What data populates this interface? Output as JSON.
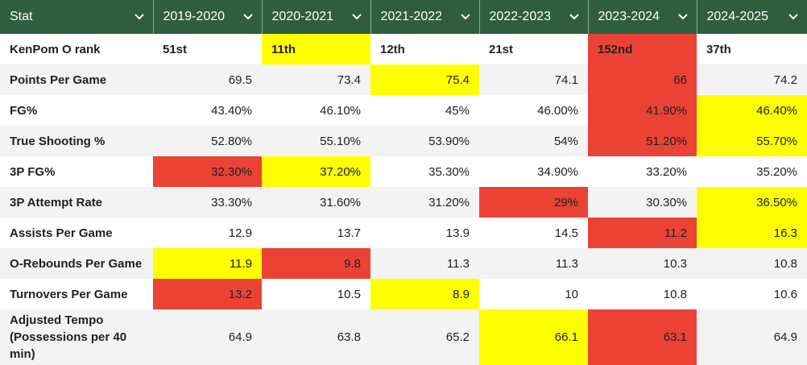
{
  "headers": [
    "Stat",
    "2019-2020",
    "2020-2021",
    "2021-2022",
    "2022-2023",
    "2023-2024",
    "2024-2025"
  ],
  "icons": {
    "header_dropdown": "chevron-down-icon"
  },
  "colors": {
    "header_bg": "#2e5e3e",
    "red": "#ea4335",
    "yellow": "#ffff00",
    "alt_row": "#f3f3f3"
  },
  "rows": [
    {
      "label": "KenPom O rank",
      "values": [
        "51st",
        "11th",
        "12th",
        "21st",
        "152nd",
        "37th"
      ],
      "highlights": [
        "",
        "yellow",
        "",
        "",
        "red",
        ""
      ]
    },
    {
      "label": "Points Per Game",
      "values": [
        "69.5",
        "73.4",
        "75.4",
        "74.1",
        "66",
        "74.2"
      ],
      "highlights": [
        "",
        "",
        "yellow",
        "",
        "red",
        ""
      ]
    },
    {
      "label": "FG%",
      "values": [
        "43.40%",
        "46.10%",
        "45%",
        "46.00%",
        "41.90%",
        "46.40%"
      ],
      "highlights": [
        "",
        "",
        "",
        "",
        "red",
        "yellow"
      ]
    },
    {
      "label": "True Shooting %",
      "values": [
        "52.80%",
        "55.10%",
        "53.90%",
        "54%",
        "51.20%",
        "55.70%"
      ],
      "highlights": [
        "",
        "",
        "",
        "",
        "red",
        "yellow"
      ]
    },
    {
      "label": "3P FG%",
      "values": [
        "32.30%",
        "37.20%",
        "35.30%",
        "34.90%",
        "33.20%",
        "35.20%"
      ],
      "highlights": [
        "red",
        "yellow",
        "",
        "",
        "",
        ""
      ]
    },
    {
      "label": "3P Attempt Rate",
      "values": [
        "33.30%",
        "31.60%",
        "31.20%",
        "29%",
        "30.30%",
        "36.50%"
      ],
      "highlights": [
        "",
        "",
        "",
        "red",
        "",
        "yellow"
      ]
    },
    {
      "label": "Assists Per Game",
      "values": [
        "12.9",
        "13.7",
        "13.9",
        "14.5",
        "11.2",
        "16.3"
      ],
      "highlights": [
        "",
        "",
        "",
        "",
        "red",
        "yellow"
      ]
    },
    {
      "label": "O-Rebounds Per Game",
      "values": [
        "11.9",
        "9.8",
        "11.3",
        "11.3",
        "10.3",
        "10.8"
      ],
      "highlights": [
        "yellow",
        "red",
        "",
        "",
        "",
        ""
      ]
    },
    {
      "label": "Turnovers Per Game",
      "values": [
        "13.2",
        "10.5",
        "8.9",
        "10",
        "10.8",
        "10.6"
      ],
      "highlights": [
        "red",
        "",
        "yellow",
        "",
        "",
        ""
      ]
    },
    {
      "label": "Adjusted Tempo (Possessions per 40 min)",
      "values": [
        "64.9",
        "63.8",
        "65.2",
        "66.1",
        "63.1",
        "64.9"
      ],
      "highlights": [
        "",
        "",
        "",
        "yellow",
        "red",
        ""
      ]
    }
  ]
}
